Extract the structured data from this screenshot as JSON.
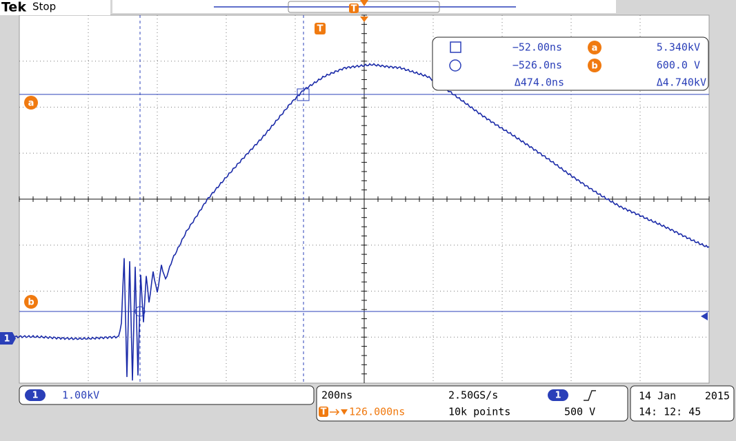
{
  "header": {
    "brand": "Tek",
    "status": "Stop"
  },
  "markers": {
    "trigger": "T",
    "cursor_a": "a",
    "cursor_b": "b",
    "channel": "1"
  },
  "cursor_readout": {
    "rows": [
      {
        "time": "−52.00ns",
        "label": "a",
        "value": "5.340kV"
      },
      {
        "time": "−526.0ns",
        "label": "b",
        "value": "600.0 V"
      },
      {
        "time": "Δ474.0ns",
        "value": "Δ4.740kV"
      }
    ]
  },
  "channel_panel": {
    "channel": "1",
    "scale": "1.00kV"
  },
  "acquisition_panel": {
    "timebase": "200ns",
    "sample_rate": "2.50GS/s",
    "trigger_channel": "1",
    "trigger_position": "126.000ns",
    "record_length": "10k points",
    "trigger_level": "500 V"
  },
  "date_panel": {
    "date": "14 Jan",
    "year": "2015",
    "time": "14: 12: 45"
  }
}
